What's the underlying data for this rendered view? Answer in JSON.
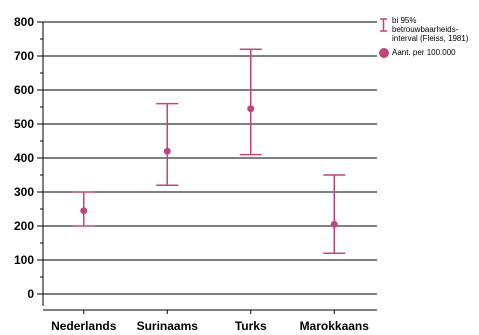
{
  "chart_data": {
    "type": "errorbar",
    "categories": [
      "Nederlands",
      "Surinaams",
      "Turks",
      "Marokkaans"
    ],
    "series": [
      {
        "name": "Aant. per 100.000",
        "values": [
          245,
          420,
          545,
          205
        ]
      }
    ],
    "ci_lower": [
      200,
      320,
      410,
      120
    ],
    "ci_upper": [
      300,
      560,
      720,
      350
    ],
    "title": "",
    "xlabel": "",
    "ylabel": "",
    "ylim": [
      0,
      800
    ],
    "yticks": [
      0,
      100,
      200,
      300,
      400,
      500,
      600,
      700,
      800
    ],
    "grid": true,
    "legend_position": "top-right",
    "colors": {
      "marker": "#c2447c",
      "grid": "#000000"
    }
  },
  "legend": {
    "ci_lines": [
      "bi 95%",
      "betrouwbaarheids-",
      "interval (Fleiss, 1981)"
    ],
    "point_label": "Aant. per 100.000"
  }
}
